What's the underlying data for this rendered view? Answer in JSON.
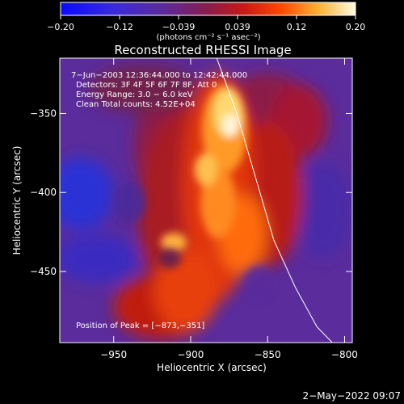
{
  "colorbar": {
    "ticks": [
      "−0.20",
      "−0.12",
      "−0.039",
      "0.039",
      "0.12",
      "0.20"
    ],
    "units": "(photons cm⁻² s⁻¹ asec⁻²)",
    "range": [
      -0.2,
      0.2
    ]
  },
  "title": "Reconstructed RHESSI Image",
  "info": {
    "time": "7−Jun−2003 12:36:44.000 to 12:42:44.000",
    "detectors": "Detectors: 3F 4F 5F 6F 7F 8F, Att 0",
    "energy": "Energy Range: 3.0 − 6.0 keV",
    "clean": "Clean     Total counts: 4.52E+04"
  },
  "peak_label": "Position of Peak = [−873,−351]",
  "timestamp": "2−May−2022 09:07",
  "chart_data": {
    "type": "heatmap",
    "title": "Reconstructed RHESSI Image",
    "xlabel": "Heliocentric X (arcsec)",
    "ylabel": "Heliocentric Y (arcsec)",
    "xlim": [
      -985,
      -795
    ],
    "ylim": [
      -495,
      -315
    ],
    "x_ticks": [
      -950,
      -900,
      -850,
      -800
    ],
    "x_tick_labels": [
      "−950",
      "−900",
      "−850",
      "−800"
    ],
    "y_ticks": [
      -350,
      -400,
      -450
    ],
    "y_tick_labels": [
      "−350",
      "−400",
      "−450"
    ],
    "peak": [
      -873,
      -351
    ],
    "limb_curve": [
      [
        -883,
        -315
      ],
      [
        -870,
        -350
      ],
      [
        -858,
        -390
      ],
      [
        -846,
        -430
      ],
      [
        -832,
        -460
      ],
      [
        -818,
        -485
      ],
      [
        -808,
        -495
      ]
    ],
    "emission_ridge": [
      [
        -876,
        -340
      ],
      [
        -880,
        -365
      ],
      [
        -880,
        -390
      ],
      [
        -878,
        -415
      ],
      [
        -885,
        -440
      ],
      [
        -895,
        -470
      ],
      [
        -905,
        -495
      ]
    ],
    "grid": false
  }
}
